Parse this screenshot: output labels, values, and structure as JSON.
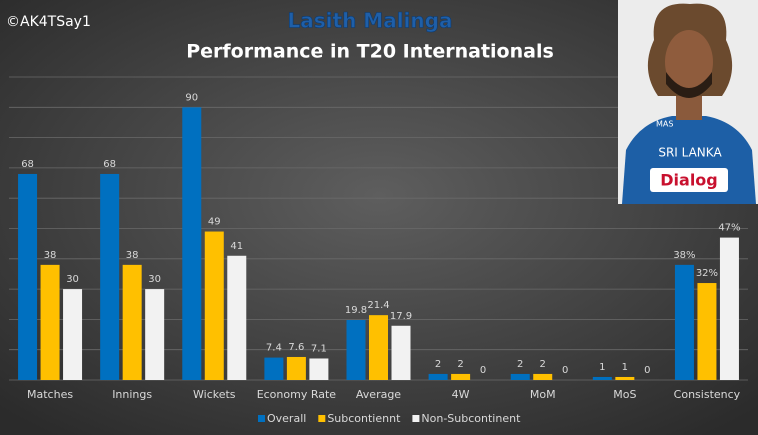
{
  "watermark": "©AK4TSay1",
  "photo": {
    "jersey_text": "SRI LANKA",
    "sponsor": "Dialog",
    "badge": "MAS"
  },
  "chart_data": {
    "type": "bar",
    "title": "Lasith Malinga",
    "subtitle": "Performance in T20 Internationals",
    "categories": [
      "Matches",
      "Innings",
      "Wickets",
      "Economy Rate",
      "Average",
      "4W",
      "MoM",
      "MoS",
      "Consistency"
    ],
    "series": [
      {
        "name": "Overall",
        "color": "#0070c0",
        "values": [
          68,
          68,
          90,
          7.4,
          19.8,
          2,
          2,
          1,
          38
        ],
        "value_labels": [
          null,
          null,
          null,
          null,
          null,
          null,
          null,
          null,
          "38%"
        ]
      },
      {
        "name": "Subcontiennt",
        "color": "#ffc000",
        "values": [
          38,
          38,
          49,
          7.6,
          21.4,
          2,
          2,
          1,
          32
        ],
        "value_labels": [
          null,
          null,
          null,
          null,
          null,
          null,
          null,
          null,
          "32%"
        ]
      },
      {
        "name": "Non-Subcontinent",
        "color": "#f2f2f2",
        "values": [
          30,
          30,
          41,
          7.1,
          17.9,
          0,
          0,
          0,
          47
        ],
        "value_labels": [
          null,
          null,
          null,
          null,
          null,
          null,
          null,
          null,
          "47%"
        ]
      }
    ],
    "ylim": [
      0,
      100
    ],
    "yticks": [
      0,
      10,
      20,
      30,
      40,
      50,
      60,
      70,
      80,
      90,
      100
    ],
    "grid": true,
    "legend": "bottom"
  }
}
